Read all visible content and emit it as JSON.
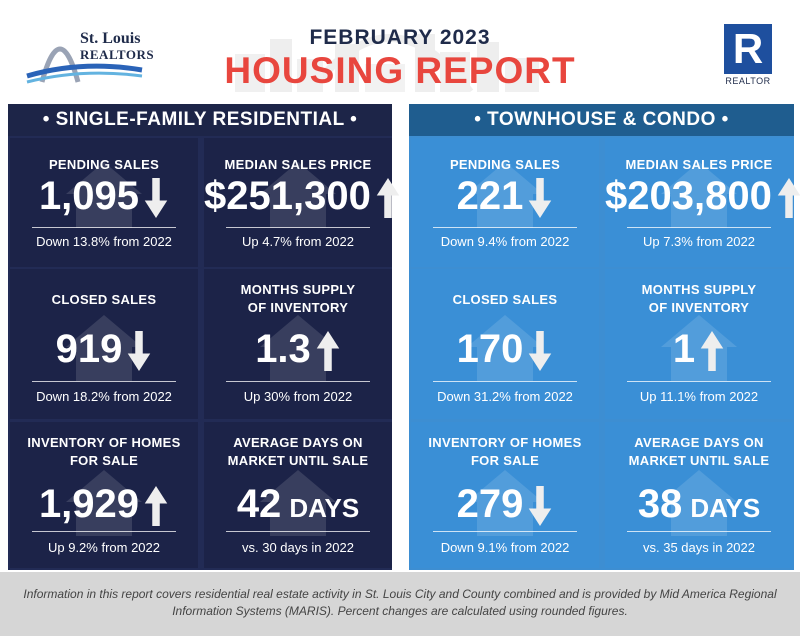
{
  "header": {
    "logo_line1": "St. Louis",
    "logo_line2": "REALTORS",
    "title_date": "FEBRUARY 2023",
    "title_main": "HOUSING REPORT",
    "realtor_mark": "R",
    "realtor_label": "REALTOR"
  },
  "sections": {
    "single_family": {
      "heading": "• SINGLE-FAMILY RESIDENTIAL •",
      "cells": [
        {
          "label": "PENDING SALES",
          "value": "1,095",
          "unit": "",
          "trend": "down",
          "note": "Down 13.8% from 2022"
        },
        {
          "label": "MEDIAN SALES PRICE",
          "value": "$251,300",
          "unit": "",
          "trend": "up",
          "note": "Up 4.7% from 2022"
        },
        {
          "label": "CLOSED SALES",
          "value": "919",
          "unit": "",
          "trend": "down",
          "note": "Down 18.2% from 2022"
        },
        {
          "label": "MONTHS SUPPLY\nOF INVENTORY",
          "value": "1.3",
          "unit": "",
          "trend": "up",
          "note": "Up 30% from 2022"
        },
        {
          "label": "INVENTORY OF HOMES\nFOR SALE",
          "value": "1,929",
          "unit": "",
          "trend": "up",
          "note": "Up 9.2% from 2022"
        },
        {
          "label": "AVERAGE DAYS ON\nMARKET UNTIL SALE",
          "value": "42",
          "unit": "DAYS",
          "trend": "",
          "note": "vs. 30 days in 2022"
        }
      ]
    },
    "townhouse": {
      "heading": "• TOWNHOUSE & CONDO •",
      "cells": [
        {
          "label": "PENDING SALES",
          "value": "221",
          "unit": "",
          "trend": "down",
          "note": "Down 9.4% from 2022"
        },
        {
          "label": "MEDIAN SALES PRICE",
          "value": "$203,800",
          "unit": "",
          "trend": "up",
          "note": "Up 7.3% from 2022"
        },
        {
          "label": "CLOSED SALES",
          "value": "170",
          "unit": "",
          "trend": "down",
          "note": "Down 31.2% from 2022"
        },
        {
          "label": "MONTHS SUPPLY\nOF INVENTORY",
          "value": "1",
          "unit": "",
          "trend": "up",
          "note": "Up 11.1% from 2022"
        },
        {
          "label": "INVENTORY OF HOMES\nFOR SALE",
          "value": "279",
          "unit": "",
          "trend": "down",
          "note": "Down 9.1% from 2022"
        },
        {
          "label": "AVERAGE DAYS ON\nMARKET UNTIL SALE",
          "value": "38",
          "unit": "DAYS",
          "trend": "",
          "note": "vs. 35 days in 2022"
        }
      ]
    }
  },
  "colors": {
    "navy": "#1c2348",
    "blue": "#3a8fd6",
    "accent_red": "#e8463e",
    "realtor_blue": "#1e4f9e"
  },
  "footer": {
    "text": "Information in this report covers residential real estate activity in St. Louis City and County combined and is provided by Mid America Regional Information Systems (MARIS). Percent changes are calculated using rounded figures."
  }
}
